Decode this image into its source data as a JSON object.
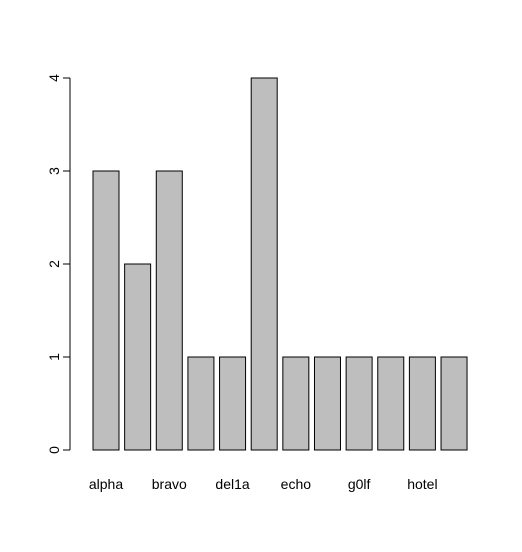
{
  "chart_data": {
    "type": "bar",
    "categories": [
      "alpha",
      "",
      "bravo",
      "",
      "del1a",
      "",
      "echo",
      "",
      "g0lf",
      "",
      "hotel",
      ""
    ],
    "values": [
      3,
      2,
      3,
      1,
      1,
      4,
      1,
      1,
      1,
      1,
      1,
      1
    ],
    "ylim": [
      0,
      4
    ],
    "yticks": [
      0,
      1,
      2,
      3,
      4
    ],
    "xlabel": "",
    "ylabel": "",
    "title": "",
    "grid": false,
    "bar_fill": "#bebebe",
    "bar_stroke": "#000000"
  }
}
